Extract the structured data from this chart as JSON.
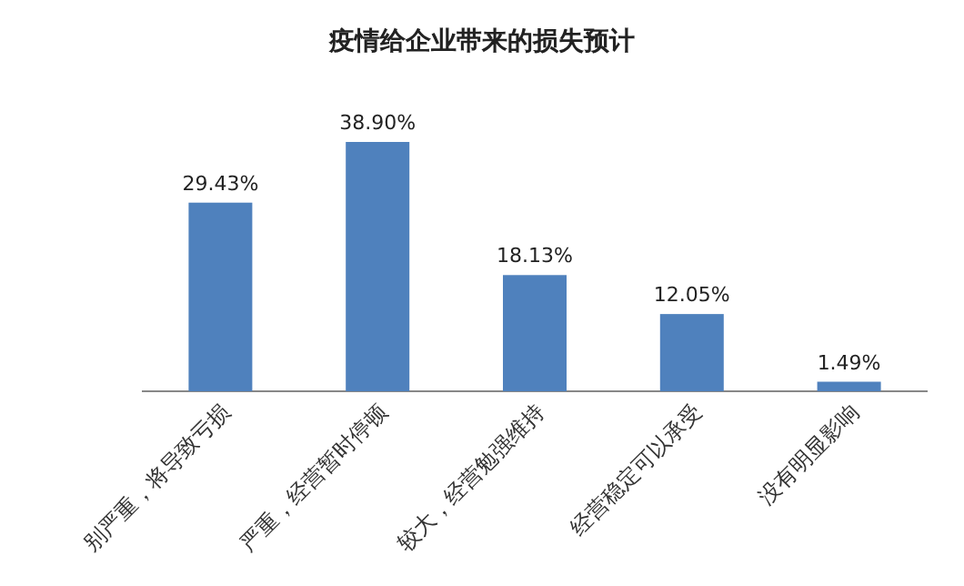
{
  "chart_data": {
    "type": "bar",
    "title": "疫情给企业带来的损失预计",
    "categories": [
      "别严重，将导致亏损",
      "严重，经营暂时停顿",
      "较大，经营勉强维持",
      "经营稳定可以承受",
      "没有明显影响"
    ],
    "values": [
      29.43,
      38.9,
      18.13,
      12.05,
      1.49
    ],
    "value_labels": [
      "29.43%",
      "38.90%",
      "18.13%",
      "12.05%",
      "1.49%"
    ],
    "color": "#4f81bd"
  }
}
